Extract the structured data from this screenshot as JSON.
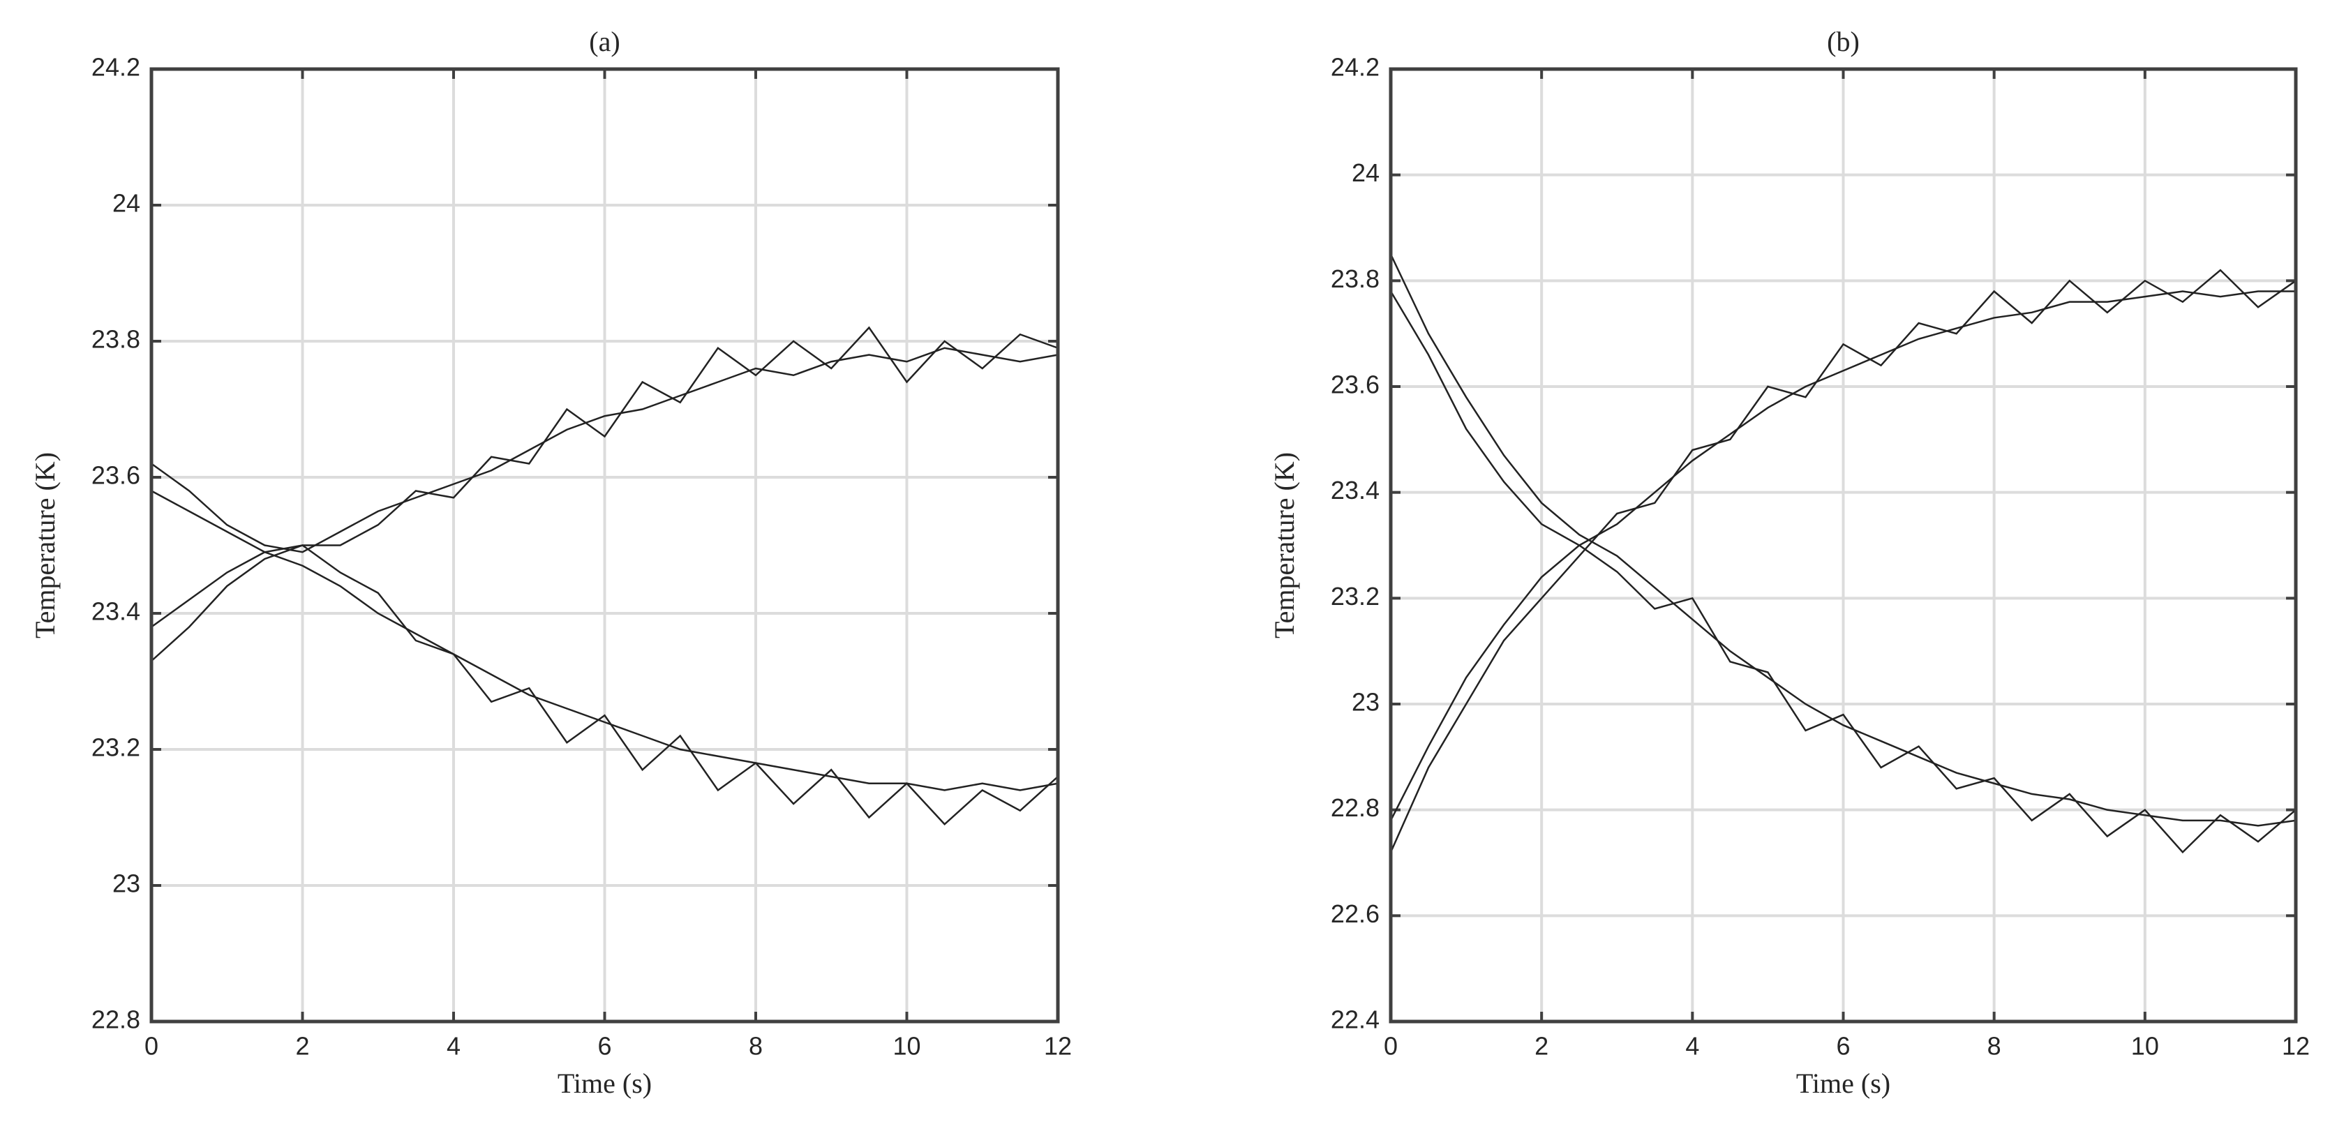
{
  "chart_data": [
    {
      "type": "line",
      "title": "(a)",
      "xlabel": "Time (s)",
      "ylabel": "Temperature (K)",
      "x": [
        0,
        0.5,
        1,
        1.5,
        2,
        2.5,
        3,
        3.5,
        4,
        4.5,
        5,
        5.5,
        6,
        6.5,
        7,
        7.5,
        8,
        8.5,
        9,
        9.5,
        10,
        10.5,
        11,
        11.5,
        12
      ],
      "series": [
        {
          "color": "#222222",
          "values": [
            23.62,
            23.58,
            23.53,
            23.5,
            23.49,
            23.52,
            23.55,
            23.57,
            23.59,
            23.61,
            23.64,
            23.67,
            23.69,
            23.7,
            23.72,
            23.74,
            23.76,
            23.75,
            23.77,
            23.78,
            23.77,
            23.79,
            23.78,
            23.77,
            23.78
          ]
        },
        {
          "color": "#222222",
          "values": [
            23.38,
            23.42,
            23.46,
            23.49,
            23.5,
            23.5,
            23.53,
            23.58,
            23.57,
            23.63,
            23.62,
            23.7,
            23.66,
            23.74,
            23.71,
            23.79,
            23.75,
            23.8,
            23.76,
            23.82,
            23.74,
            23.8,
            23.76,
            23.81,
            23.79
          ]
        },
        {
          "color": "#222222",
          "values": [
            23.58,
            23.55,
            23.52,
            23.49,
            23.47,
            23.44,
            23.4,
            23.37,
            23.34,
            23.31,
            23.28,
            23.26,
            23.24,
            23.22,
            23.2,
            23.19,
            23.18,
            23.17,
            23.16,
            23.15,
            23.15,
            23.14,
            23.15,
            23.14,
            23.15
          ]
        },
        {
          "color": "#222222",
          "values": [
            23.33,
            23.38,
            23.44,
            23.48,
            23.5,
            23.46,
            23.43,
            23.36,
            23.34,
            23.27,
            23.29,
            23.21,
            23.25,
            23.17,
            23.22,
            23.14,
            23.18,
            23.12,
            23.17,
            23.1,
            23.15,
            23.09,
            23.14,
            23.11,
            23.16
          ]
        }
      ],
      "xlim": [
        0,
        12
      ],
      "ylim": [
        22.8,
        24.2
      ],
      "xticks": [
        0,
        2,
        4,
        6,
        8,
        10,
        12
      ],
      "yticks": [
        22.8,
        23,
        23.2,
        23.4,
        23.6,
        23.8,
        24,
        24.2
      ],
      "grid": true
    },
    {
      "type": "line",
      "title": "(b)",
      "xlabel": "Time (s)",
      "ylabel": "Temperature (K)",
      "x": [
        0,
        0.5,
        1,
        1.5,
        2,
        2.5,
        3,
        3.5,
        4,
        4.5,
        5,
        5.5,
        6,
        6.5,
        7,
        7.5,
        8,
        8.5,
        9,
        9.5,
        10,
        10.5,
        11,
        11.5,
        12
      ],
      "series": [
        {
          "color": "#222222",
          "values": [
            23.85,
            23.7,
            23.58,
            23.47,
            23.38,
            23.32,
            23.28,
            23.22,
            23.16,
            23.1,
            23.05,
            23.0,
            22.96,
            22.93,
            22.9,
            22.87,
            22.85,
            22.83,
            22.82,
            22.8,
            22.79,
            22.78,
            22.78,
            22.77,
            22.78
          ]
        },
        {
          "color": "#222222",
          "values": [
            23.78,
            23.66,
            23.52,
            23.42,
            23.34,
            23.3,
            23.25,
            23.18,
            23.2,
            23.08,
            23.06,
            22.95,
            22.98,
            22.88,
            22.92,
            22.84,
            22.86,
            22.78,
            22.83,
            22.75,
            22.8,
            22.72,
            22.79,
            22.74,
            22.8
          ]
        },
        {
          "color": "#222222",
          "values": [
            22.78,
            22.92,
            23.05,
            23.15,
            23.24,
            23.3,
            23.34,
            23.4,
            23.46,
            23.51,
            23.56,
            23.6,
            23.63,
            23.66,
            23.69,
            23.71,
            23.73,
            23.74,
            23.76,
            23.76,
            23.77,
            23.78,
            23.77,
            23.78,
            23.78
          ]
        },
        {
          "color": "#222222",
          "values": [
            22.72,
            22.88,
            23.0,
            23.12,
            23.2,
            23.28,
            23.36,
            23.38,
            23.48,
            23.5,
            23.6,
            23.58,
            23.68,
            23.64,
            23.72,
            23.7,
            23.78,
            23.72,
            23.8,
            23.74,
            23.8,
            23.76,
            23.82,
            23.75,
            23.8
          ]
        }
      ],
      "xlim": [
        0,
        12
      ],
      "ylim": [
        22.4,
        24.2
      ],
      "xticks": [
        0,
        2,
        4,
        6,
        8,
        10,
        12
      ],
      "yticks": [
        22.4,
        22.6,
        22.8,
        23,
        23.2,
        23.4,
        23.6,
        23.8,
        24,
        24.2
      ],
      "grid": true
    }
  ]
}
